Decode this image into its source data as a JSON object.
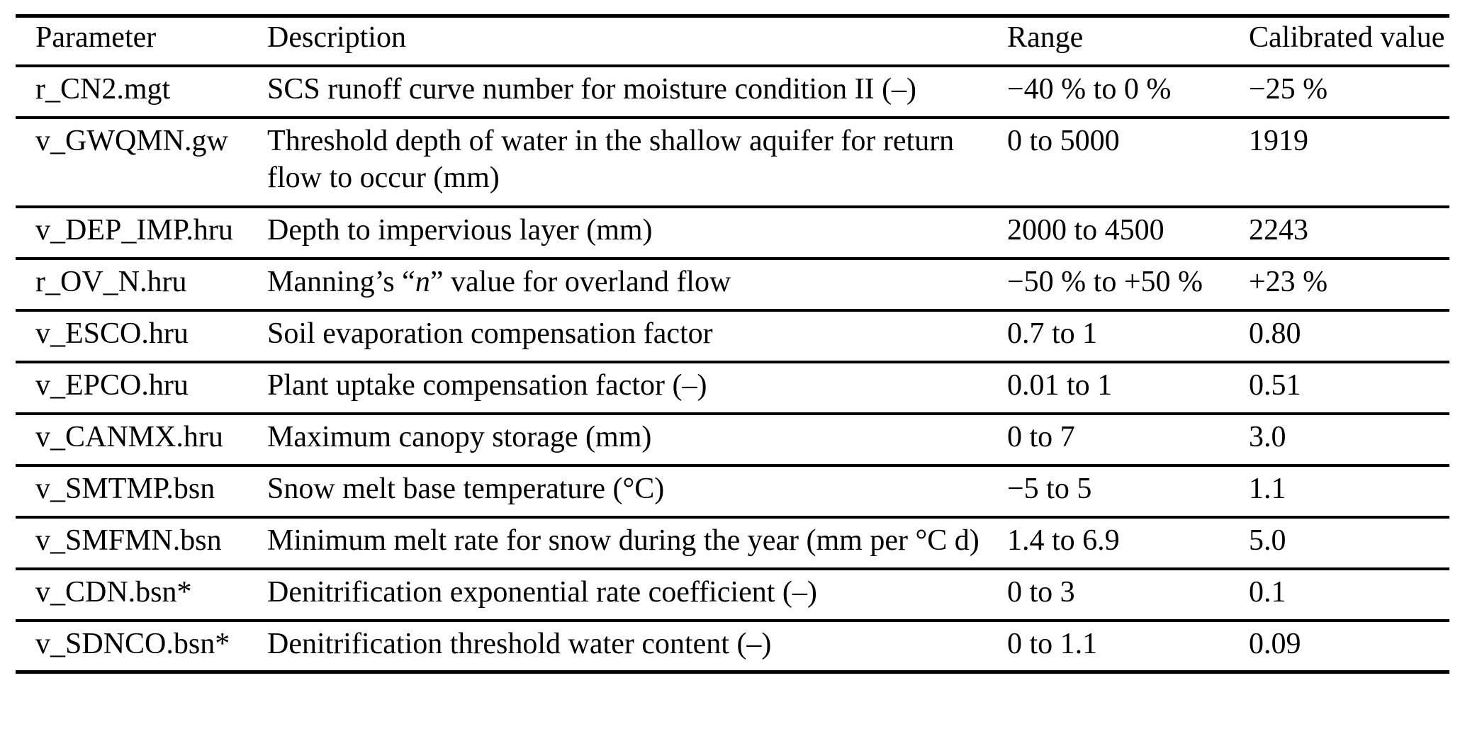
{
  "table": {
    "columns": [
      "Parameter",
      "Description",
      "Range",
      "Calibrated value"
    ],
    "rows": [
      {
        "param": "r_CN2.mgt",
        "desc": "SCS runoff curve number for moisture condition II (–)",
        "range": "−40 % to 0 %",
        "value": "−25 %"
      },
      {
        "param": "v_GWQMN.gw",
        "desc": "Threshold depth of water in the shallow aquifer for return flow to occur (mm)",
        "range": "0 to 5000",
        "value": "1919"
      },
      {
        "param": "v_DEP_IMP.hru",
        "desc": "Depth to impervious layer (mm)",
        "range": "2000 to 4500",
        "value": "2243"
      },
      {
        "param": "r_OV_N.hru",
        "desc": "Manning’s “*n*” value for overland flow",
        "range": "−50 % to +50 %",
        "value": "+23 %"
      },
      {
        "param": "v_ESCO.hru",
        "desc": "Soil evaporation compensation factor",
        "range": "0.7 to 1",
        "value": "0.80"
      },
      {
        "param": "v_EPCO.hru",
        "desc": "Plant uptake compensation factor (–)",
        "range": "0.01 to 1",
        "value": "0.51"
      },
      {
        "param": "v_CANMX.hru",
        "desc": "Maximum canopy storage (mm)",
        "range": "0 to 7",
        "value": "3.0"
      },
      {
        "param": "v_SMTMP.bsn",
        "desc": "Snow melt base temperature (°C)",
        "range": "−5 to 5",
        "value": "1.1"
      },
      {
        "param": "v_SMFMN.bsn",
        "desc": "Minimum melt rate for snow during the year (mm per °C d)",
        "range": "1.4 to 6.9",
        "value": "5.0"
      },
      {
        "param": "v_CDN.bsn*",
        "desc": "Denitrification exponential rate coefficient (–)",
        "range": "0 to 3",
        "value": "0.1"
      },
      {
        "param": "v_SDNCO.bsn*",
        "desc": "Denitrification threshold water content (–)",
        "range": "0 to 1.1",
        "value": "0.09"
      }
    ]
  },
  "colors": {
    "text": "#000000",
    "background": "#ffffff",
    "rule": "#000000"
  }
}
